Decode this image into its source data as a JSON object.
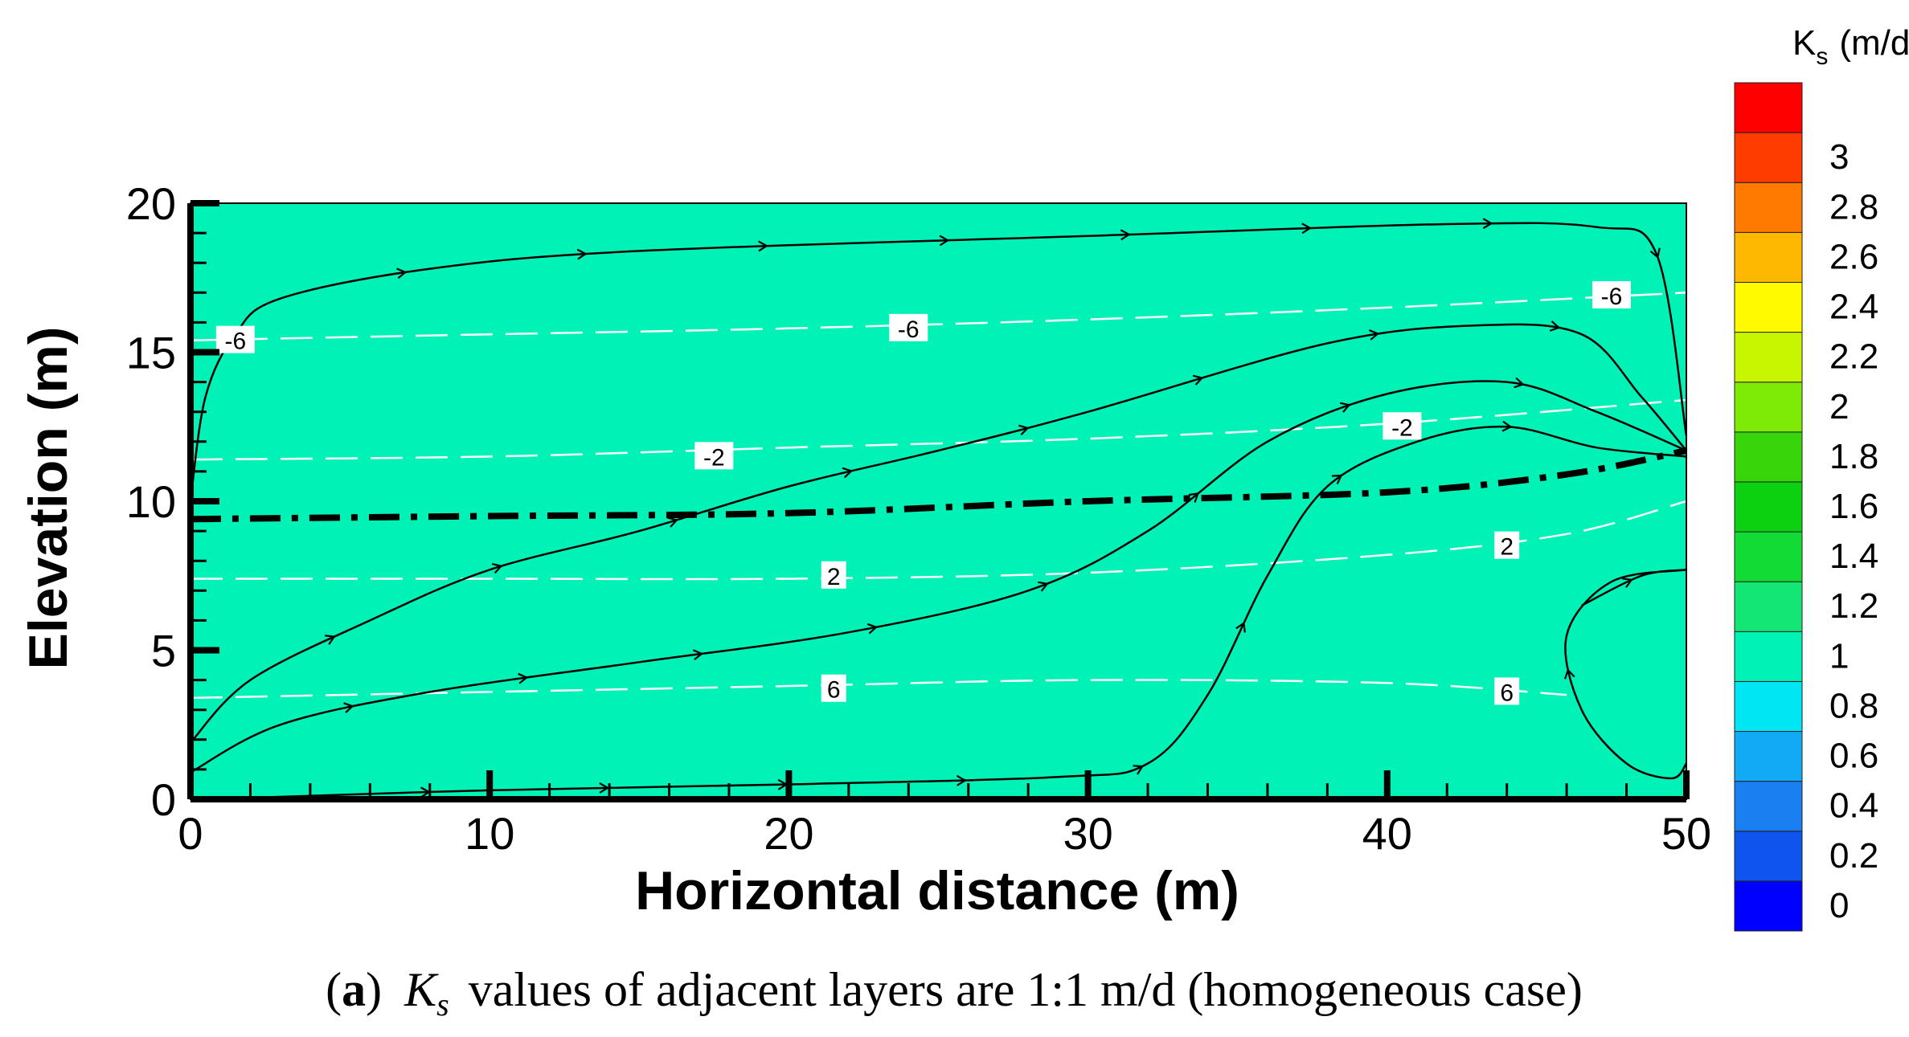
{
  "chart_data": {
    "type": "contour",
    "field": "Ks",
    "xlabel": "Horizontal distance (m)",
    "ylabel": "Elevation (m)",
    "xlim": [
      0,
      50
    ],
    "ylim": [
      0,
      20
    ],
    "xticks": [
      0,
      10,
      20,
      30,
      40,
      50
    ],
    "yticks": [
      0,
      5,
      10,
      15,
      20
    ],
    "background_color": "#00F2B6",
    "colorbar": {
      "title_main": "K",
      "title_sub": "s",
      "title_unit": "(m/d)",
      "ticks": [
        0,
        0.2,
        0.4,
        0.6,
        0.8,
        1,
        1.2,
        1.4,
        1.6,
        1.8,
        2,
        2.2,
        2.4,
        2.6,
        2.8,
        3
      ],
      "tick_labels": [
        "0",
        "0.2",
        "0.4",
        "0.6",
        "0.8",
        "1",
        "1.2",
        "1.4",
        "1.6",
        "1.8",
        "2",
        "2.2",
        "2.4",
        "2.6",
        "2.8",
        "3"
      ],
      "colors": [
        "#0000FF",
        "#0F54EE",
        "#1A7FF0",
        "#12AAF5",
        "#00E6F2",
        "#00F2B6",
        "#14E676",
        "#12DB35",
        "#0CD111",
        "#38D50A",
        "#7EEB06",
        "#C8F500",
        "#FFFA00",
        "#FFB800",
        "#FF7A00",
        "#FF3C00",
        "#FF0000"
      ]
    },
    "water_table": [
      [
        0,
        9.4
      ],
      [
        10,
        9.5
      ],
      [
        20,
        9.6
      ],
      [
        30,
        10.0
      ],
      [
        40,
        10.3
      ],
      [
        46,
        10.9
      ],
      [
        50,
        11.7
      ]
    ],
    "pressure_head_contours": [
      {
        "label": "-6",
        "points": [
          [
            0,
            15.4
          ],
          [
            10,
            15.6
          ],
          [
            20,
            15.8
          ],
          [
            30,
            16.1
          ],
          [
            40,
            16.5
          ],
          [
            50,
            17.0
          ]
        ],
        "label_positions": [
          [
            1.5,
            15.4
          ],
          [
            24,
            15.8
          ],
          [
            47.5,
            16.9
          ]
        ]
      },
      {
        "label": "-2",
        "points": [
          [
            0,
            11.4
          ],
          [
            10,
            11.5
          ],
          [
            20,
            11.8
          ],
          [
            30,
            12.1
          ],
          [
            40,
            12.6
          ],
          [
            50,
            13.4
          ]
        ],
        "label_positions": [
          [
            17.5,
            11.5
          ],
          [
            40.5,
            12.5
          ]
        ]
      },
      {
        "label": "2",
        "points": [
          [
            0,
            7.4
          ],
          [
            10,
            7.4
          ],
          [
            20,
            7.4
          ],
          [
            30,
            7.6
          ],
          [
            40,
            8.2
          ],
          [
            46,
            8.9
          ],
          [
            50,
            10.0
          ]
        ],
        "label_positions": [
          [
            21.5,
            7.5
          ],
          [
            44,
            8.5
          ]
        ]
      },
      {
        "label": "6",
        "points": [
          [
            0,
            3.4
          ],
          [
            10,
            3.6
          ],
          [
            20,
            3.8
          ],
          [
            30,
            4.0
          ],
          [
            40,
            3.9
          ],
          [
            46,
            3.5
          ]
        ],
        "label_positions": [
          [
            21.5,
            3.7
          ],
          [
            44,
            3.6
          ]
        ]
      }
    ],
    "streamlines": [
      [
        [
          46.5,
          6.5
        ],
        [
          48.5,
          7.5
        ],
        [
          50,
          7.7
        ]
      ],
      [
        [
          0,
          10
        ],
        [
          0.5,
          13.5
        ],
        [
          1.5,
          15.6
        ],
        [
          3,
          16.8
        ],
        [
          8,
          17.8
        ],
        [
          15,
          18.4
        ],
        [
          30,
          18.9
        ],
        [
          42,
          19.3
        ],
        [
          47,
          19.2
        ],
        [
          49,
          18.3
        ],
        [
          50,
          12.2
        ]
      ],
      [
        [
          0,
          1.9
        ],
        [
          2,
          4
        ],
        [
          6,
          6
        ],
        [
          10,
          7.7
        ],
        [
          15,
          9
        ],
        [
          20,
          10.5
        ],
        [
          25,
          11.7
        ],
        [
          30,
          13
        ],
        [
          38,
          15.3
        ],
        [
          43,
          15.9
        ],
        [
          46.5,
          15.6
        ],
        [
          48.5,
          13.5
        ],
        [
          50,
          11.7
        ]
      ],
      [
        [
          0,
          0.9
        ],
        [
          3,
          2.5
        ],
        [
          8,
          3.6
        ],
        [
          15,
          4.6
        ],
        [
          22,
          5.6
        ],
        [
          28,
          7.0
        ],
        [
          32,
          9.0
        ],
        [
          36,
          12.0
        ],
        [
          40,
          13.6
        ],
        [
          44,
          14.0
        ],
        [
          47,
          13.0
        ],
        [
          50,
          11.7
        ]
      ],
      [
        [
          2,
          0.05
        ],
        [
          10,
          0.3
        ],
        [
          20,
          0.5
        ],
        [
          29,
          0.75
        ],
        [
          32,
          1.2
        ],
        [
          34,
          3.5
        ],
        [
          36,
          7.5
        ],
        [
          38,
          10.5
        ],
        [
          41,
          12.0
        ],
        [
          44,
          12.5
        ],
        [
          47,
          11.8
        ],
        [
          50,
          11.5
        ]
      ]
    ],
    "seepage_loop": [
      [
        50,
        7.7
      ],
      [
        47.5,
        7.3
      ],
      [
        46,
        5.5
      ],
      [
        46.5,
        3
      ],
      [
        48,
        1.2
      ],
      [
        49.5,
        0.7
      ],
      [
        50,
        1.2
      ]
    ],
    "caption_label": "a",
    "caption_symbol": "K",
    "caption_symbol_sub": "s",
    "caption_text": "values of adjacent layers are 1:1 m/d (homogeneous case)"
  }
}
